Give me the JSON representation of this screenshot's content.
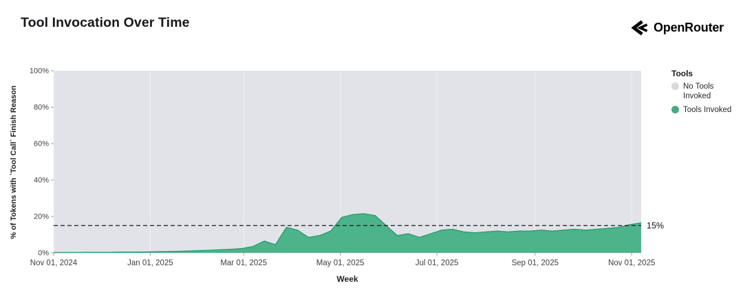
{
  "header": {
    "title": "Tool Invocation Over Time",
    "brand": "OpenRouter"
  },
  "legend": {
    "title": "Tools",
    "items": [
      {
        "label": "No Tools Invoked",
        "color": "#d9dade"
      },
      {
        "label": "Tools Invoked",
        "color": "#41ad80"
      }
    ]
  },
  "chart_data": {
    "type": "area",
    "stacked_percent": true,
    "title": "Tool Invocation Over Time",
    "xlabel": "Week",
    "ylabel": "% of Tokens with `Tool Call` Finish Reason",
    "ylim": [
      0,
      100
    ],
    "legend_position": "right",
    "grid": "vertical-only",
    "y_ticks": [
      {
        "value": 0,
        "label": "0%"
      },
      {
        "value": 20,
        "label": "20%"
      },
      {
        "value": 40,
        "label": "40%"
      },
      {
        "value": 60,
        "label": "60%"
      },
      {
        "value": 80,
        "label": "80%"
      },
      {
        "value": 100,
        "label": "100%"
      }
    ],
    "x_ticks": [
      {
        "date": "2024-11-01",
        "label": "Nov 01, 2024"
      },
      {
        "date": "2025-01-01",
        "label": "Jan 01, 2025"
      },
      {
        "date": "2025-03-01",
        "label": "Mar 01, 2025"
      },
      {
        "date": "2025-05-01",
        "label": "May 01, 2025"
      },
      {
        "date": "2025-07-01",
        "label": "Jul 01, 2025"
      },
      {
        "date": "2025-09-01",
        "label": "Sep 01, 2025"
      },
      {
        "date": "2025-11-01",
        "label": "Nov 01, 2025"
      }
    ],
    "reference_line": {
      "value": 15,
      "label": "15%"
    },
    "colors": {
      "tools_fill": "#4db38a",
      "tools_line": "#2f9f74",
      "no_tools_fill": "#e2e3e9",
      "grid": "#f1f1f5",
      "axis_text": "#3f3f46",
      "tick": "#9a9aa2",
      "reference": "#1a1a1a"
    },
    "x": [
      "2024-11-01",
      "2024-11-08",
      "2024-11-15",
      "2024-11-22",
      "2024-11-29",
      "2024-12-06",
      "2024-12-13",
      "2024-12-20",
      "2024-12-27",
      "2025-01-03",
      "2025-01-10",
      "2025-01-17",
      "2025-01-24",
      "2025-01-31",
      "2025-02-07",
      "2025-02-14",
      "2025-02-21",
      "2025-02-28",
      "2025-03-07",
      "2025-03-14",
      "2025-03-21",
      "2025-03-28",
      "2025-04-04",
      "2025-04-11",
      "2025-04-18",
      "2025-04-25",
      "2025-05-02",
      "2025-05-09",
      "2025-05-16",
      "2025-05-23",
      "2025-05-30",
      "2025-06-06",
      "2025-06-13",
      "2025-06-20",
      "2025-06-27",
      "2025-07-04",
      "2025-07-11",
      "2025-07-18",
      "2025-07-25",
      "2025-08-01",
      "2025-08-08",
      "2025-08-15",
      "2025-08-22",
      "2025-08-29",
      "2025-09-05",
      "2025-09-12",
      "2025-09-19",
      "2025-09-26",
      "2025-10-03",
      "2025-10-10",
      "2025-10-17",
      "2025-10-24",
      "2025-10-31",
      "2025-11-07"
    ],
    "series": [
      {
        "name": "Tools Invoked",
        "color": "#4db38a",
        "values": [
          0.2,
          0.2,
          0.2,
          0.3,
          0.3,
          0.3,
          0.4,
          0.4,
          0.5,
          0.6,
          0.7,
          0.8,
          1.0,
          1.2,
          1.4,
          1.7,
          2.0,
          2.4,
          3.5,
          6.5,
          4.5,
          14.0,
          12.5,
          8.5,
          9.5,
          12.0,
          19.5,
          21.0,
          21.5,
          20.5,
          15.0,
          9.5,
          10.5,
          8.5,
          10.5,
          12.5,
          13.0,
          11.5,
          11.0,
          11.5,
          12.0,
          11.5,
          12.0,
          12.0,
          12.5,
          12.0,
          12.5,
          13.0,
          12.5,
          13.0,
          13.5,
          14.0,
          15.5,
          16.5
        ]
      },
      {
        "name": "No Tools Invoked",
        "color": "#e2e3e9",
        "values_note": "complement of Tools Invoked: 100 - value (stacked to 100%)"
      }
    ]
  }
}
